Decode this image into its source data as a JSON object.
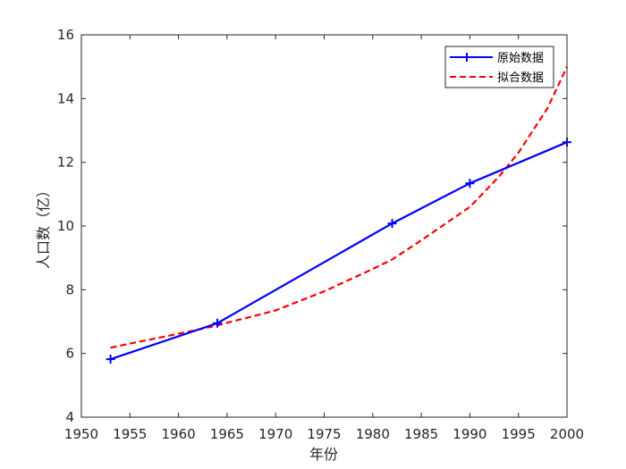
{
  "chart_data": {
    "type": "line",
    "xlabel": "年份",
    "ylabel": "人口数（亿）",
    "xlim": [
      1950,
      2000
    ],
    "ylim": [
      4,
      16
    ],
    "xticks": [
      1950,
      1955,
      1960,
      1965,
      1970,
      1975,
      1980,
      1985,
      1990,
      1995,
      2000
    ],
    "yticks": [
      4,
      6,
      8,
      10,
      12,
      14,
      16
    ],
    "grid": false,
    "legend_position": "top-right",
    "series": [
      {
        "name": "原始数据",
        "style": "solid",
        "marker": "+",
        "color": "#0000ff",
        "x": [
          1953,
          1964,
          1982,
          1990,
          2000
        ],
        "y": [
          5.82,
          6.95,
          10.08,
          11.34,
          12.63
        ]
      },
      {
        "name": "拟合数据",
        "style": "dashed",
        "marker": "none",
        "color": "#ff0000",
        "x": [
          1953,
          1955,
          1960,
          1964,
          1965,
          1970,
          1975,
          1980,
          1982,
          1985,
          1990,
          1993,
          1995,
          1998,
          2000
        ],
        "y": [
          6.18,
          6.31,
          6.62,
          6.88,
          6.96,
          7.35,
          7.95,
          8.65,
          8.95,
          9.55,
          10.6,
          11.55,
          12.3,
          13.7,
          15.0
        ]
      }
    ]
  }
}
